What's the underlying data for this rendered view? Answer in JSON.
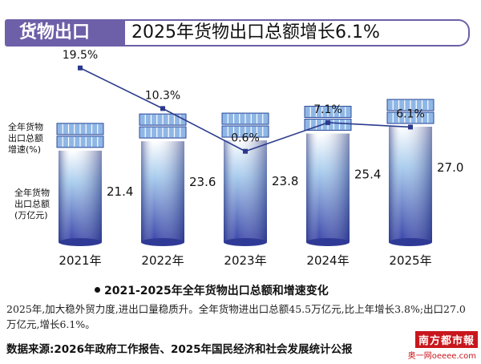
{
  "header": {
    "tag": "货物出口",
    "title": "2025年货物出口总额增长6.1%"
  },
  "colors": {
    "accent": "#6d5fa8",
    "line": "#2b3a8c",
    "bar_top": "#ffffff",
    "bar_bottom": "#3a44a8"
  },
  "chart_data": {
    "type": "bar",
    "categories": [
      "2021年",
      "2022年",
      "2023年",
      "2024年",
      "2025年"
    ],
    "series": [
      {
        "name": "全年货物出口总额(万亿元)",
        "type": "bar",
        "values": [
          21.4,
          23.6,
          23.8,
          25.4,
          27.0
        ]
      },
      {
        "name": "全年货物出口总额增速(%)",
        "type": "line",
        "values": [
          19.5,
          10.3,
          0.6,
          7.1,
          6.1
        ],
        "labels": [
          "19.5%",
          "10.3%",
          "0.6%",
          "7.1%",
          "6.1%"
        ]
      }
    ],
    "value_labels": [
      "21.4",
      "23.6",
      "23.8",
      "25.4",
      "27.0"
    ],
    "left_label_rate": [
      "全年货物",
      "出口总额",
      "增速(%)"
    ],
    "left_label_value": [
      "全年货物",
      "出口总额",
      "(万亿元)"
    ],
    "ylim_value": [
      0,
      30
    ],
    "ylim_rate": [
      0,
      20
    ],
    "title": "2021-2025年全年货物出口总额和增速变化"
  },
  "note": "2025年,加大稳外贸力度,进出口量稳质升。全年货物进出口总额45.5万亿元,比上年增长3.8%;出口27.0万亿元,增长6.1%。",
  "source": "数据来源:2026年政府工作报告、2025年国民经济和社会发展统计公报",
  "logo": {
    "name": "南方都市報",
    "site": "奥一网oeeee.com"
  }
}
